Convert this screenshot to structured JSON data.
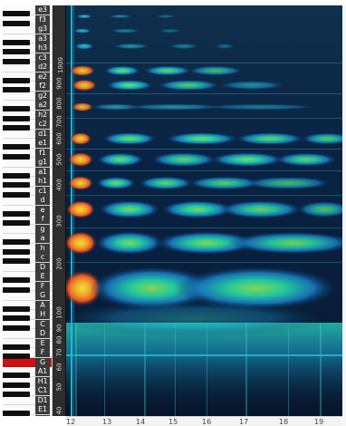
{
  "keyboard": {
    "white_keys": [
      {
        "label": "e3",
        "highlight": false
      },
      {
        "label": "f3",
        "highlight": false
      },
      {
        "label": "g3",
        "highlight": false
      },
      {
        "label": "a3",
        "highlight": false
      },
      {
        "label": "h3",
        "highlight": false
      },
      {
        "label": "c3",
        "highlight": false
      },
      {
        "label": "d2",
        "highlight": false
      },
      {
        "label": "e2",
        "highlight": false
      },
      {
        "label": "f2",
        "highlight": false
      },
      {
        "label": "g2",
        "highlight": false
      },
      {
        "label": "a2",
        "highlight": false
      },
      {
        "label": "h2",
        "highlight": false
      },
      {
        "label": "c2",
        "highlight": false
      },
      {
        "label": "d1",
        "highlight": false
      },
      {
        "label": "e1",
        "highlight": false
      },
      {
        "label": "f1",
        "highlight": false
      },
      {
        "label": "g1",
        "highlight": false
      },
      {
        "label": "a1",
        "highlight": false
      },
      {
        "label": "h1",
        "highlight": false
      },
      {
        "label": "c1",
        "highlight": false
      },
      {
        "label": "d",
        "highlight": false
      },
      {
        "label": "e",
        "highlight": false
      },
      {
        "label": "f",
        "highlight": false
      },
      {
        "label": "g",
        "highlight": false
      },
      {
        "label": "a",
        "highlight": false
      },
      {
        "label": "h",
        "highlight": false
      },
      {
        "label": "c",
        "highlight": false
      },
      {
        "label": "D",
        "highlight": false
      },
      {
        "label": "E",
        "highlight": false
      },
      {
        "label": "F",
        "highlight": false
      },
      {
        "label": "G",
        "highlight": false
      },
      {
        "label": "A",
        "highlight": false
      },
      {
        "label": "H",
        "highlight": false
      },
      {
        "label": "C",
        "highlight": false
      },
      {
        "label": "D",
        "highlight": false
      },
      {
        "label": "E",
        "highlight": false
      },
      {
        "label": "F",
        "highlight": false
      },
      {
        "label": "G",
        "highlight": true
      },
      {
        "label": "A1",
        "highlight": false
      },
      {
        "label": "H1",
        "highlight": false
      },
      {
        "label": "C1",
        "highlight": false
      },
      {
        "label": "D1",
        "highlight": false
      },
      {
        "label": "E1",
        "highlight": false
      },
      {
        "label": "F1",
        "highlight": false
      }
    ]
  },
  "frequency_axis": {
    "ticks": [
      "1000",
      "900",
      "800",
      "700",
      "600",
      "500",
      "400",
      "300",
      "200",
      "100",
      "90",
      "80",
      "70",
      "60",
      "50",
      "40"
    ]
  },
  "time_axis": {
    "ticks": [
      "12",
      "13",
      "14",
      "15",
      "16",
      "17",
      "18",
      "19"
    ]
  },
  "colors": {
    "background": "#07162c",
    "cursor_line": "#26b9c9"
  }
}
